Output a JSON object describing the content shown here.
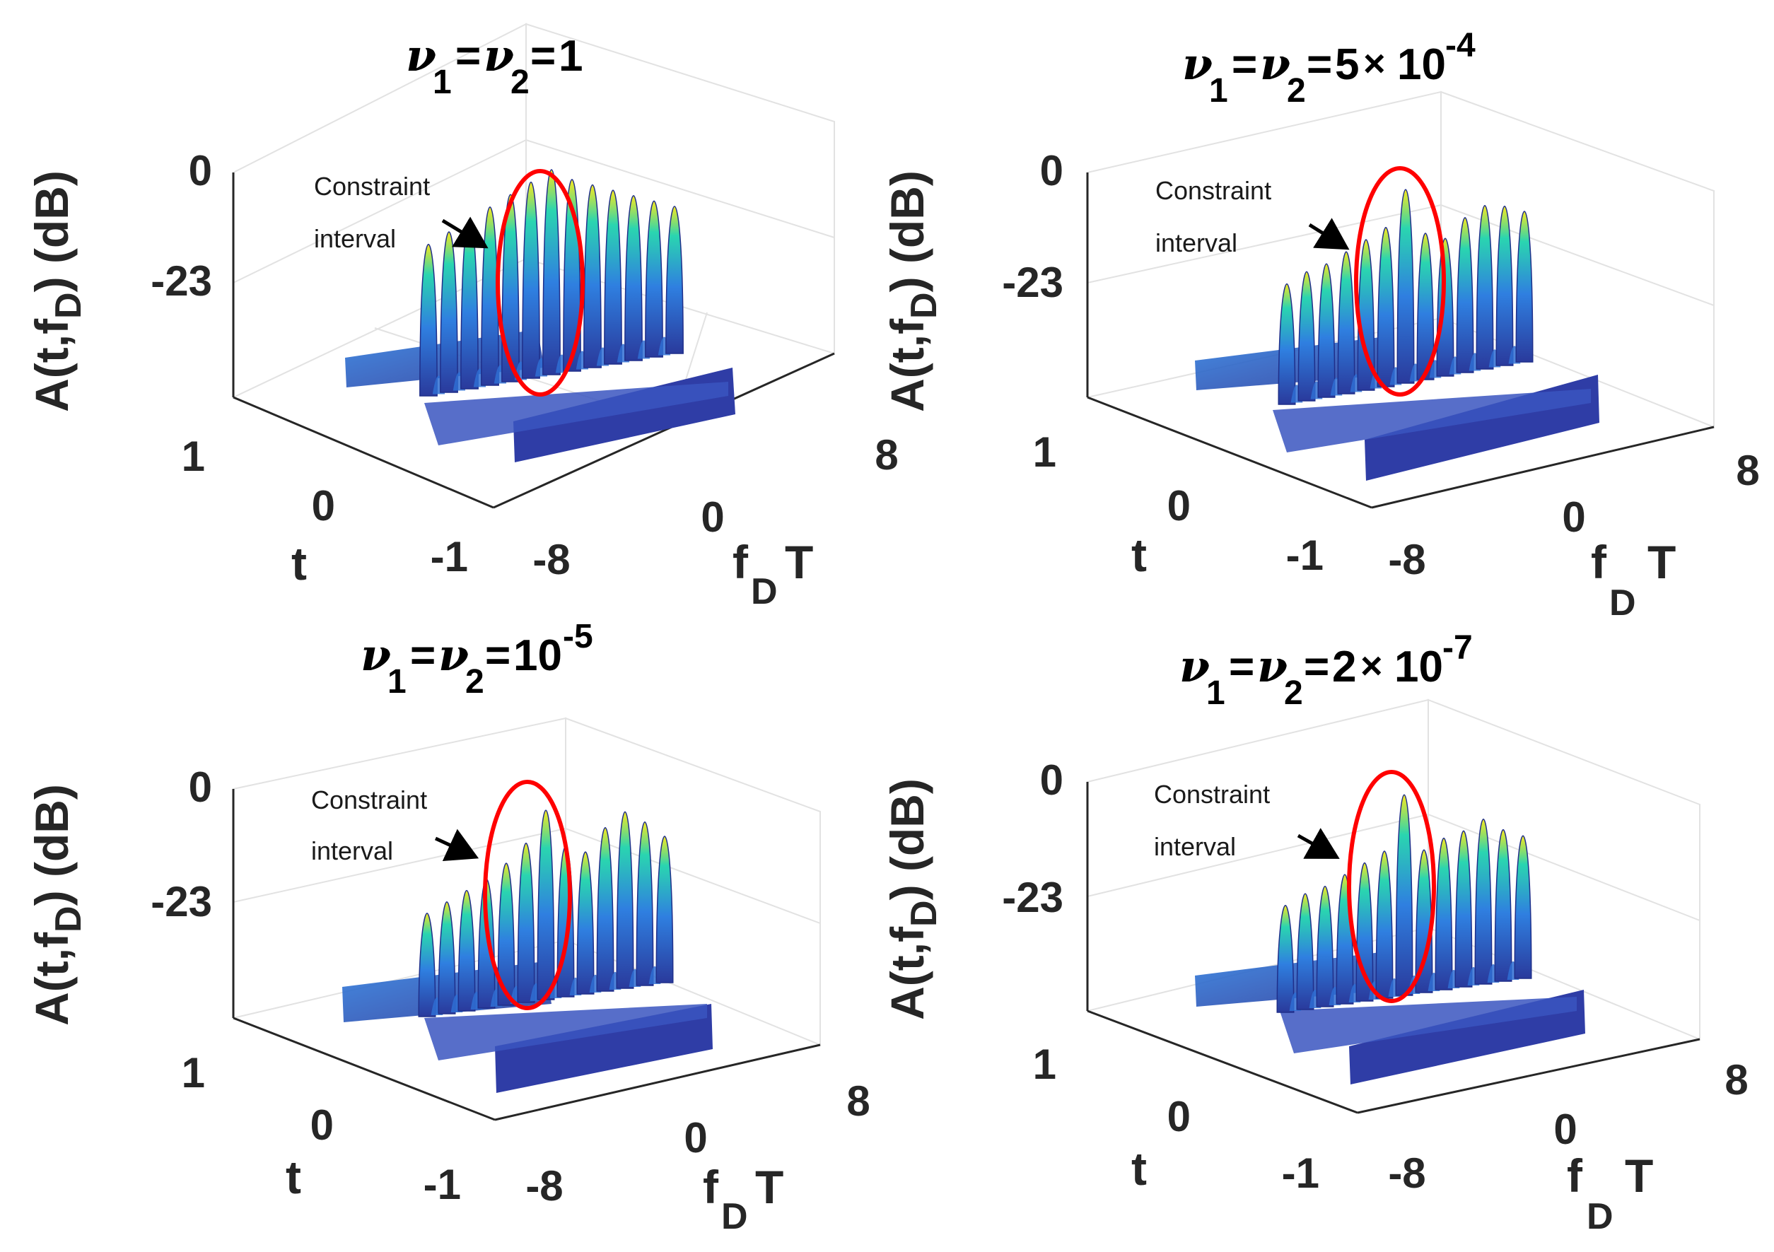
{
  "figure_title": "Ambiguity functions A(t, f_D) for different constraint weights",
  "colors": {
    "background": "#ffffff",
    "axis_line": "#262626",
    "grid": "#e2e2e2",
    "constraint_ellipse": "#ff0000",
    "annotation_arrow": "#000000",
    "surface_low": "#2a3a9c",
    "surface_mid": "#2f7fe0",
    "surface_high": "#2ad5b0",
    "surface_peak": "#f6e81f"
  },
  "chart_data": [
    {
      "type": "surface3d",
      "title_nu1": "ν",
      "title_sub1": "1",
      "title_eq1": "=",
      "title_nu2": "ν",
      "title_sub2": "2",
      "title_eq2": "=",
      "title_mant": "1",
      "title_times": "",
      "title_base": "",
      "title_exp": "",
      "zlabel_main": "A(t,f",
      "zlabel_sub": "D",
      "zlabel_tail": ") (dB)",
      "ylabel": "t",
      "xlabel_main": "f",
      "xlabel_sub": "D",
      "xlabel_tail": "T",
      "zticks": [
        "0",
        "-23"
      ],
      "yticks": [
        "1",
        "0",
        "-1"
      ],
      "xticks": [
        "-8",
        "0",
        "8"
      ],
      "zlim": [
        -46,
        0
      ],
      "xlim": [
        -8,
        8
      ],
      "ylim": [
        -1,
        1
      ],
      "annotation_line1": "Constraint",
      "annotation_line2": "interval",
      "peak_heights_db": [
        -12,
        -10,
        -8,
        -6,
        -4,
        -2,
        0,
        -3,
        -5,
        -7,
        -9,
        -11,
        -13
      ],
      "constraint_peaks": [
        4,
        7
      ]
    },
    {
      "type": "surface3d",
      "title_nu1": "ν",
      "title_sub1": "1",
      "title_eq1": "=",
      "title_nu2": "ν",
      "title_sub2": "2",
      "title_eq2": "=",
      "title_mant": "5",
      "title_times": "×",
      "title_base": "10",
      "title_exp": "-4",
      "zlabel_main": "A(t,f",
      "zlabel_sub": "D",
      "zlabel_tail": ") (dB)",
      "ylabel": "t",
      "xlabel_main": "f",
      "xlabel_sub": "D",
      "xlabel_tail": "T",
      "zticks": [
        "0",
        "-23"
      ],
      "yticks": [
        "1",
        "0",
        "-1"
      ],
      "xticks": [
        "-8",
        "0",
        "8"
      ],
      "zlim": [
        -46,
        0
      ],
      "xlim": [
        -8,
        8
      ],
      "ylim": [
        -1,
        1
      ],
      "annotation_line1": "Constraint",
      "annotation_line2": "interval",
      "peak_heights_db": [
        -18,
        -16,
        -15,
        -13,
        -11,
        -9,
        -1,
        -12,
        -14,
        -10,
        -8,
        -9,
        -11
      ],
      "constraint_peaks": [
        4,
        7
      ]
    },
    {
      "type": "surface3d",
      "title_nu1": "ν",
      "title_sub1": "1",
      "title_eq1": "=",
      "title_nu2": "ν",
      "title_sub2": "2",
      "title_eq2": "=",
      "title_mant": "",
      "title_times": "",
      "title_base": "10",
      "title_exp": "-5",
      "zlabel_main": "A(t,f",
      "zlabel_sub": "D",
      "zlabel_tail": ") (dB)",
      "ylabel": "t",
      "xlabel_main": "f",
      "xlabel_sub": "D",
      "xlabel_tail": "T",
      "zticks": [
        "0",
        "-23"
      ],
      "yticks": [
        "1",
        "0",
        "-1"
      ],
      "xticks": [
        "-8",
        "0",
        "8"
      ],
      "zlim": [
        -46,
        0
      ],
      "xlim": [
        -8,
        8
      ],
      "ylim": [
        -1,
        1
      ],
      "annotation_line1": "Constraint",
      "annotation_line2": "interval",
      "peak_heights_db": [
        -22,
        -20,
        -18,
        -16,
        -13,
        -9,
        -2,
        -11,
        -13,
        -8,
        -5,
        -8,
        -12
      ],
      "constraint_peaks": [
        4,
        7
      ]
    },
    {
      "type": "surface3d",
      "title_nu1": "ν",
      "title_sub1": "1",
      "title_eq1": "=",
      "title_nu2": "ν",
      "title_sub2": "2",
      "title_eq2": "=",
      "title_mant": "2",
      "title_times": "×",
      "title_base": "10",
      "title_exp": "-7",
      "zlabel_main": "A(t,f",
      "zlabel_sub": "D",
      "zlabel_tail": ") (dB)",
      "ylabel": "t",
      "xlabel_main": "f",
      "xlabel_sub": "D",
      "xlabel_tail": "T",
      "zticks": [
        "0",
        "-23"
      ],
      "yticks": [
        "1",
        "0",
        "-1"
      ],
      "xticks": [
        "-8",
        "0",
        "8"
      ],
      "zlim": [
        -46,
        0
      ],
      "xlim": [
        -8,
        8
      ],
      "ylim": [
        -1,
        1
      ],
      "annotation_line1": "Constraint",
      "annotation_line2": "interval",
      "peak_heights_db": [
        -22,
        -20,
        -19,
        -17,
        -15,
        -13,
        -1,
        -14,
        -12,
        -11,
        -9,
        -12,
        -14
      ],
      "constraint_peaks": [
        4,
        7
      ]
    }
  ]
}
